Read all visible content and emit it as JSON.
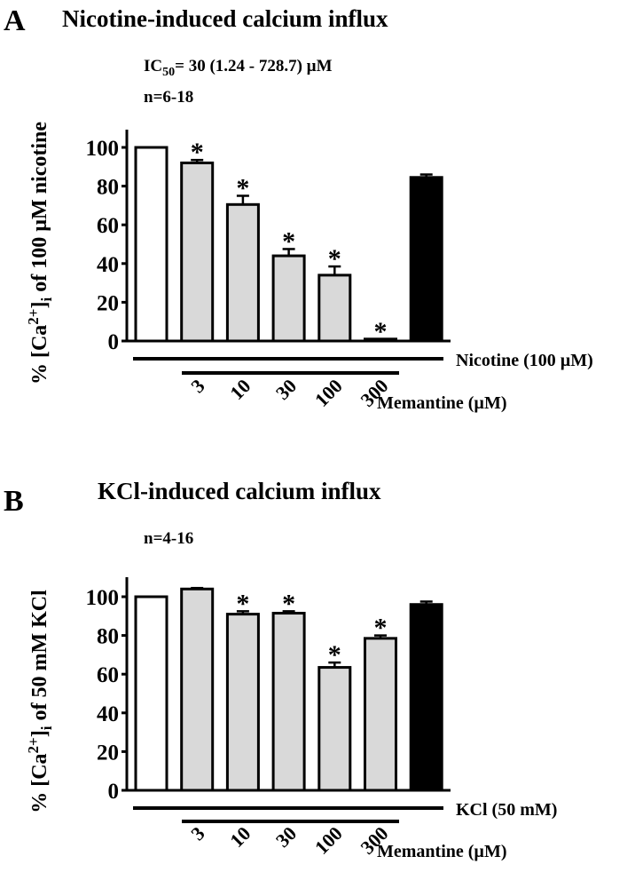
{
  "chart_data": [
    {
      "type": "bar",
      "panel": "A",
      "title": "Nicotine-induced calcium influx",
      "annotation_ic50": "IC",
      "annotation_ic50_sub": "50",
      "annotation_ic50_rest": "= 30 (1.24 - 728.7) µM",
      "annotation_n": "n=6-18",
      "ylabel_pre": "% [Ca",
      "ylabel_sup": "2+",
      "ylabel_mid": "]",
      "ylabel_sub": "i",
      "ylabel_post": " of 100 µM nicotine",
      "ylim": [
        0,
        110
      ],
      "yticks": [
        "0",
        "20",
        "40",
        "60",
        "80",
        "100"
      ],
      "treatment_label": "Nicotine (100 µM)",
      "drug_label": "Memantine (µM)",
      "categories": [
        "",
        "3",
        "10",
        "30",
        "100",
        "300",
        ""
      ],
      "values": [
        100,
        92,
        70.5,
        44,
        34,
        1,
        84.5
      ],
      "errors": [
        0,
        1.5,
        4.5,
        3.5,
        4.5,
        0,
        1.5
      ],
      "significant": [
        false,
        true,
        true,
        true,
        true,
        true,
        false
      ],
      "fills": [
        "#ffffff",
        "#d9d9d9",
        "#d9d9d9",
        "#d9d9d9",
        "#d9d9d9",
        "#d9d9d9",
        "#000000"
      ]
    },
    {
      "type": "bar",
      "panel": "B",
      "title": "KCl-induced calcium influx",
      "annotation_n": "n=4-16",
      "ylabel_pre": "% [Ca",
      "ylabel_sup": "2+",
      "ylabel_mid": "]",
      "ylabel_sub": "i",
      "ylabel_post": " of 50 mM KCl",
      "ylim": [
        0,
        110
      ],
      "yticks": [
        "0",
        "20",
        "40",
        "60",
        "80",
        "100"
      ],
      "treatment_label": "KCl (50 mM)",
      "drug_label": "Memantine (µM)",
      "categories": [
        "",
        "3",
        "10",
        "30",
        "100",
        "300",
        ""
      ],
      "values": [
        100,
        104,
        91,
        91.5,
        63.5,
        78.5,
        96
      ],
      "errors": [
        0,
        0.5,
        1.5,
        1,
        2.5,
        1.5,
        1.5
      ],
      "significant": [
        false,
        false,
        true,
        true,
        true,
        true,
        false
      ],
      "fills": [
        "#ffffff",
        "#d9d9d9",
        "#d9d9d9",
        "#d9d9d9",
        "#d9d9d9",
        "#d9d9d9",
        "#000000"
      ]
    }
  ]
}
